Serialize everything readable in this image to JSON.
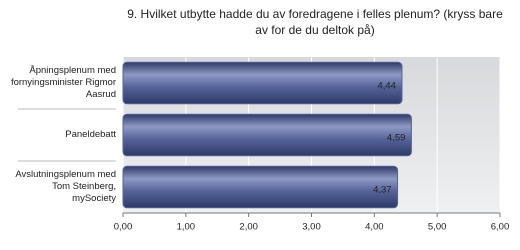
{
  "chart_data": {
    "type": "bar",
    "orientation": "horizontal",
    "title": "9. Hvilket utbytte hadde du av foredragene i felles plenum? (kryss bare av for de du deltok på)",
    "categories": [
      "Åpningsplenum med fornyingsminister Rigmor Aasrud",
      "Paneldebatt",
      "Avslutningsplenum med Tom Steinberg, mySociety"
    ],
    "values": [
      4.44,
      4.59,
      4.37
    ],
    "value_labels": [
      "4,44",
      "4,59",
      "4,37"
    ],
    "color": "#56639a",
    "xlim": [
      0,
      6
    ],
    "xticks": [
      {
        "value": 0,
        "label": "0,00"
      },
      {
        "value": 1,
        "label": "1,00"
      },
      {
        "value": 2,
        "label": "2,00"
      },
      {
        "value": 3,
        "label": "3,00"
      },
      {
        "value": 4,
        "label": "4,00"
      },
      {
        "value": 5,
        "label": "5,00"
      },
      {
        "value": 6,
        "label": "6,00"
      }
    ],
    "grid": true
  }
}
